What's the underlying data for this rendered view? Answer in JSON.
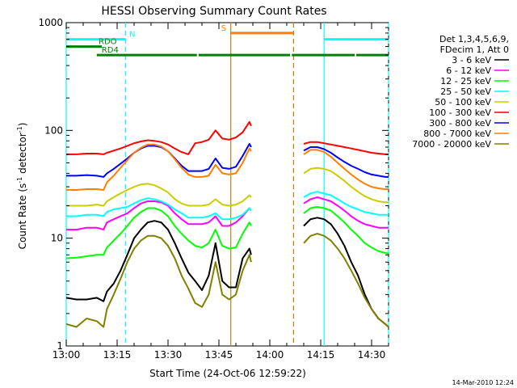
{
  "chart_data": {
    "type": "line",
    "title": "HESSI Observing Summary Count Rates",
    "xlabel": "Start Time (24-Oct-06 12:59:22)",
    "ylabel_parts": [
      "Count Rate (s",
      "-1",
      " detector",
      "-1",
      ")"
    ],
    "y_scale": "log",
    "ylim": [
      1,
      1000
    ],
    "xlim_minutes": [
      0,
      95
    ],
    "x_ticks": [
      {
        "t": 0,
        "label": "13:00"
      },
      {
        "t": 15,
        "label": "13:15"
      },
      {
        "t": 30,
        "label": "13:30"
      },
      {
        "t": 45,
        "label": "13:45"
      },
      {
        "t": 60,
        "label": "14:00"
      },
      {
        "t": 75,
        "label": "14:15"
      },
      {
        "t": 90,
        "label": "14:30"
      }
    ],
    "y_ticks": [
      {
        "v": 1,
        "label": "1"
      },
      {
        "v": 10,
        "label": "10"
      },
      {
        "v": 100,
        "label": "100"
      },
      {
        "v": 1000,
        "label": "1000"
      }
    ],
    "legend_header": [
      "Det 1,3,4,5,6,9,",
      "FDecim 1, Att 0"
    ],
    "series": [
      {
        "name": "3 - 6 keV",
        "color": "#000000",
        "x": [
          0,
          3,
          6,
          9,
          11,
          12,
          14,
          16,
          18,
          20,
          22,
          24,
          26,
          28,
          30,
          32,
          34,
          36,
          38,
          40,
          42,
          44,
          46,
          48,
          50,
          52,
          54,
          54.5
        ],
        "y": [
          2.8,
          2.7,
          2.7,
          2.8,
          2.6,
          3.2,
          3.8,
          5,
          7,
          10,
          12,
          14,
          14.5,
          14,
          12,
          9,
          6.5,
          4.8,
          4,
          3.3,
          4.5,
          9,
          4,
          3.5,
          3.5,
          6.5,
          8,
          7
        ]
      },
      {
        "name": "6 - 12 keV",
        "color": "#ff00ff",
        "x": [
          0,
          3,
          6,
          9,
          11,
          12,
          14,
          16,
          18,
          20,
          22,
          24,
          26,
          28,
          30,
          32,
          34,
          36,
          38,
          40,
          42,
          44,
          46,
          48,
          50,
          52,
          54,
          54.5
        ],
        "y": [
          12,
          12,
          12.5,
          12.5,
          12,
          14,
          15,
          16,
          17,
          19,
          21,
          22,
          22,
          21.5,
          20,
          17,
          15,
          13.5,
          13.5,
          13.5,
          14,
          16,
          13,
          13,
          14,
          16,
          19,
          18
        ]
      },
      {
        "name": "12 - 25 keV",
        "color": "#00ff00",
        "x": [
          0,
          3,
          6,
          9,
          11,
          12,
          14,
          16,
          18,
          20,
          22,
          24,
          26,
          28,
          30,
          32,
          34,
          36,
          38,
          40,
          42,
          44,
          46,
          48,
          50,
          52,
          54,
          54.5
        ],
        "y": [
          6.5,
          6.6,
          6.8,
          7,
          7,
          8.2,
          9.5,
          11,
          13,
          15.5,
          17.5,
          19,
          19,
          18,
          16,
          13,
          11,
          9.5,
          8.5,
          8.2,
          9,
          12,
          8.5,
          8,
          8.2,
          11,
          14,
          13
        ]
      },
      {
        "name": "25 - 50 keV",
        "color": "#00ffff",
        "x": [
          0,
          3,
          6,
          9,
          11,
          12,
          14,
          16,
          18,
          20,
          22,
          24,
          26,
          28,
          30,
          32,
          34,
          36,
          38,
          40,
          42,
          44,
          46,
          48,
          50,
          52,
          54,
          54.5
        ],
        "y": [
          16,
          16,
          16.5,
          16.5,
          16,
          17.5,
          18.5,
          19,
          19.5,
          21,
          22.5,
          23.5,
          23,
          22,
          20.5,
          18.5,
          17,
          15.5,
          15.5,
          15.5,
          16,
          17,
          15,
          15,
          15.5,
          16.5,
          19,
          18
        ]
      },
      {
        "name": "50 - 100 keV",
        "color": "#cccc00",
        "x": [
          0,
          3,
          6,
          9,
          11,
          12,
          14,
          16,
          18,
          20,
          22,
          24,
          26,
          28,
          30,
          32,
          34,
          36,
          38,
          40,
          42,
          44,
          46,
          48,
          50,
          52,
          54,
          54.5
        ],
        "y": [
          20,
          20,
          20,
          20.5,
          20,
          22,
          24,
          26,
          28,
          30,
          31.5,
          32,
          31,
          29,
          26.5,
          23,
          21,
          20,
          20,
          20,
          20.5,
          23,
          20.5,
          20,
          20.5,
          22,
          25,
          24
        ]
      },
      {
        "name": "100 - 300 keV",
        "color": "#ff0000",
        "x": [
          0,
          3,
          6,
          9,
          11,
          12,
          14,
          16,
          18,
          20,
          22,
          24,
          26,
          28,
          30,
          32,
          34,
          36,
          38,
          40,
          42,
          44,
          46,
          48,
          50,
          52,
          54,
          54.5
        ],
        "y": [
          60,
          60,
          61,
          61,
          60,
          62,
          65,
          68,
          72,
          76,
          79,
          81,
          80,
          78,
          74,
          68,
          63,
          60,
          76,
          78,
          82,
          100,
          84,
          82,
          86,
          96,
          120,
          110
        ]
      },
      {
        "name": "300 - 800 keV",
        "color": "#0000ff",
        "x": [
          0,
          3,
          6,
          9,
          11,
          12,
          14,
          16,
          18,
          20,
          22,
          24,
          26,
          28,
          30,
          32,
          34,
          36,
          38,
          40,
          42,
          44,
          46,
          48,
          50,
          52,
          54,
          54.5
        ],
        "y": [
          38,
          38,
          38.5,
          38,
          37,
          40,
          44,
          49,
          55,
          62,
          68,
          72,
          72,
          70,
          64,
          55,
          47,
          42,
          42,
          42,
          44,
          55,
          45,
          44,
          46,
          58,
          75,
          70
        ]
      },
      {
        "name": "800 - 7000 keV",
        "color": "#ff8000",
        "x": [
          0,
          3,
          6,
          9,
          11,
          12,
          14,
          16,
          18,
          20,
          22,
          24,
          26,
          28,
          30,
          32,
          34,
          36,
          38,
          40,
          42,
          44,
          46,
          48,
          50,
          52,
          54,
          54.5
        ],
        "y": [
          28,
          28,
          28.5,
          28.5,
          28,
          33,
          38,
          45,
          53,
          62,
          69,
          74,
          74,
          71,
          64,
          54,
          45,
          39,
          37,
          37,
          38,
          48,
          40,
          39,
          40,
          50,
          68,
          64
        ]
      },
      {
        "name": "7000 - 20000 keV",
        "color": "#808000",
        "x": [
          0,
          3,
          6,
          9,
          11,
          12,
          14,
          16,
          18,
          20,
          22,
          24,
          26,
          28,
          30,
          32,
          34,
          36,
          38,
          40,
          42,
          44,
          46,
          48,
          50,
          52,
          54,
          54.5
        ],
        "y": [
          1.6,
          1.5,
          1.8,
          1.7,
          1.5,
          2.2,
          3,
          4.2,
          6,
          8,
          9.5,
          10.5,
          10.5,
          10,
          8.5,
          6.5,
          4.5,
          3.4,
          2.5,
          2.3,
          3,
          6,
          3,
          2.7,
          3,
          5,
          7,
          6
        ]
      }
    ],
    "series_after_gap": [
      {
        "name": "3 - 6 keV",
        "x": [
          70,
          72,
          74,
          76,
          78,
          80,
          82,
          84,
          86,
          88,
          90,
          92,
          94,
          95
        ],
        "y": [
          13,
          15,
          15.5,
          15,
          13.5,
          11,
          8.5,
          6,
          4.5,
          3,
          2.2,
          1.8,
          1.6,
          1.5
        ]
      },
      {
        "name": "6 - 12 keV",
        "x": [
          70,
          72,
          74,
          76,
          78,
          80,
          82,
          84,
          86,
          88,
          90,
          92,
          94,
          95
        ],
        "y": [
          21,
          23,
          24,
          23,
          22,
          20,
          18,
          16,
          14.5,
          13.5,
          13,
          12.5,
          12.5,
          12.5
        ]
      },
      {
        "name": "12 - 25 keV",
        "x": [
          70,
          72,
          74,
          76,
          78,
          80,
          82,
          84,
          86,
          88,
          90,
          92,
          94,
          95
        ],
        "y": [
          17,
          19,
          19.5,
          19,
          18,
          16,
          14,
          12,
          10.5,
          9,
          8.2,
          7.6,
          7.3,
          7.2
        ]
      },
      {
        "name": "25 - 50 keV",
        "x": [
          70,
          72,
          74,
          76,
          78,
          80,
          82,
          84,
          86,
          88,
          90,
          92,
          94,
          95
        ],
        "y": [
          24,
          26,
          27,
          26,
          25,
          23,
          21,
          19.5,
          18.5,
          17.5,
          17,
          16.5,
          16.5,
          16.5
        ]
      },
      {
        "name": "50 - 100 keV",
        "x": [
          70,
          72,
          74,
          76,
          78,
          80,
          82,
          84,
          86,
          88,
          90,
          92,
          94,
          95
        ],
        "y": [
          40,
          44,
          45,
          44,
          42,
          38,
          34,
          30,
          27,
          24.5,
          23,
          22,
          21.5,
          21.5
        ]
      },
      {
        "name": "100 - 300 keV",
        "x": [
          70,
          72,
          74,
          76,
          78,
          80,
          82,
          84,
          86,
          88,
          90,
          92,
          94,
          95
        ],
        "y": [
          75,
          78,
          78,
          76,
          74,
          72,
          70,
          68,
          66,
          64,
          62,
          61,
          60,
          60
        ]
      },
      {
        "name": "300 - 800 keV",
        "x": [
          70,
          72,
          74,
          76,
          78,
          80,
          82,
          84,
          86,
          88,
          90,
          92,
          94,
          95
        ],
        "y": [
          65,
          70,
          70,
          67,
          62,
          56,
          51,
          47,
          44,
          41,
          39,
          38,
          37,
          37
        ]
      },
      {
        "name": "800 - 7000 keV",
        "x": [
          70,
          72,
          74,
          76,
          78,
          80,
          82,
          84,
          86,
          88,
          90,
          92,
          94,
          95
        ],
        "y": [
          60,
          66,
          66,
          63,
          57,
          50,
          44,
          39,
          35,
          32,
          30,
          29,
          28.5,
          28.5
        ]
      },
      {
        "name": "7000 - 20000 keV",
        "x": [
          70,
          72,
          74,
          76,
          78,
          80,
          82,
          84,
          86,
          88,
          90,
          92,
          94,
          95
        ],
        "y": [
          9,
          10.5,
          11,
          10.5,
          9.5,
          8,
          6.5,
          5,
          3.8,
          2.8,
          2.2,
          1.8,
          1.6,
          1.5
        ]
      }
    ],
    "flag_bars": [
      {
        "label": "N",
        "color": "#00ffff",
        "segments": [
          [
            0,
            17.5
          ],
          [
            76,
            95
          ]
        ],
        "level": 700
      },
      {
        "label": "RDO",
        "color": "#008000",
        "segments": [
          [
            0,
            10.5
          ]
        ],
        "level": 600
      },
      {
        "label": "RD4",
        "color": "#008000",
        "segments": [
          [
            9,
            38.5
          ],
          [
            39,
            66
          ],
          [
            66.5,
            85
          ],
          [
            85.5,
            95
          ]
        ],
        "level": 500
      },
      {
        "label": "S",
        "color": "#ff8000",
        "segments": [
          [
            48.5,
            67
          ]
        ],
        "level": 800
      }
    ],
    "vertical_markers": [
      {
        "t": 17.5,
        "color": "#00ffff",
        "dashed": true
      },
      {
        "t": 76,
        "color": "#00ffff",
        "dashed": false
      },
      {
        "t": 95,
        "color": "#00ffff",
        "dashed": true
      },
      {
        "t": 0,
        "color": "#00ffff",
        "dashed": false
      },
      {
        "t": 48.5,
        "color": "#b8860b",
        "dashed": false
      },
      {
        "t": 67,
        "color": "#b8860b",
        "dashed": true
      }
    ],
    "legend_placement": "right",
    "footer_date": "14-Mar-2010 12:24"
  }
}
